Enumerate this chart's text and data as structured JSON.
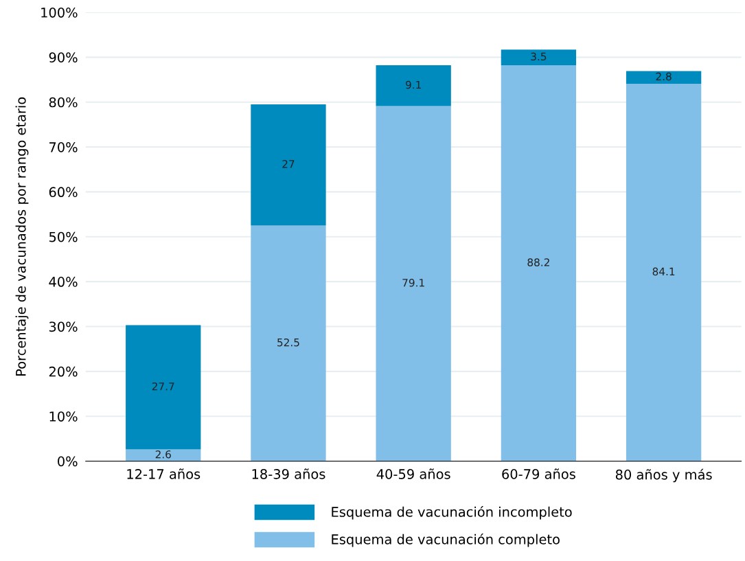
{
  "chart_data": {
    "type": "bar",
    "stacked": true,
    "ylabel": "Porcentaje de vacunados por rango etario",
    "categories": [
      "12-17 años",
      "18-39 años",
      "40-59 años",
      "60-79 años",
      "80 años y más"
    ],
    "series": [
      {
        "name": "Esquema de vacunación completo",
        "color": "#82bfe8",
        "values": [
          2.6,
          52.5,
          79.1,
          88.2,
          84.1
        ]
      },
      {
        "name": "Esquema de vacunación incompleto",
        "color": "#008bbf",
        "values": [
          27.7,
          27,
          9.1,
          3.5,
          2.8
        ]
      }
    ],
    "ylim": [
      0,
      100
    ],
    "yticks": [
      {
        "value": 0,
        "label": "0%"
      },
      {
        "value": 10,
        "label": "10%"
      },
      {
        "value": 20,
        "label": "20%"
      },
      {
        "value": 30,
        "label": "30%"
      },
      {
        "value": 40,
        "label": "40%"
      },
      {
        "value": 50,
        "label": "50%"
      },
      {
        "value": 60,
        "label": "60%"
      },
      {
        "value": 70,
        "label": "70%"
      },
      {
        "value": 80,
        "label": "80%"
      },
      {
        "value": 90,
        "label": "90%"
      },
      {
        "value": 100,
        "label": "100%"
      }
    ],
    "grid": "y",
    "legend": "bottom",
    "data_labels": true
  }
}
